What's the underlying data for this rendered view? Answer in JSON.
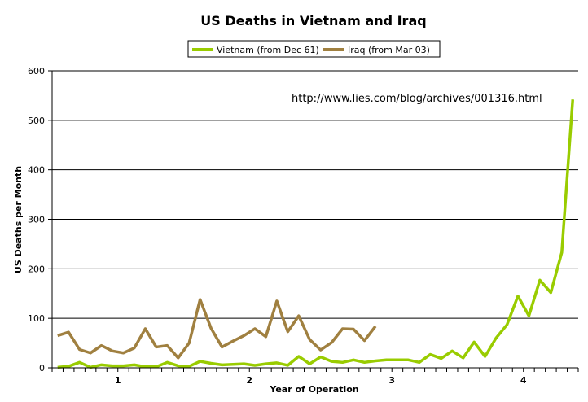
{
  "chart_data": {
    "type": "line",
    "title": "US Deaths in Vietnam and Iraq",
    "xlabel": "Year of Operation",
    "ylabel": "US Deaths per Month",
    "ylim": [
      0,
      600
    ],
    "yticks": [
      "0",
      "100",
      "200",
      "300",
      "400",
      "500",
      "600"
    ],
    "xtick_labels": [
      {
        "label": "1",
        "month": 6
      },
      {
        "label": "2",
        "month": 18
      },
      {
        "label": "3",
        "month": 31
      },
      {
        "label": "4",
        "month": 43
      }
    ],
    "months_in_view": 48,
    "grid": true,
    "legend": "top",
    "annotation": "http://www.lies.com/blog/archives/001316.html",
    "series": [
      {
        "name": "Vietnam (from Dec 61)",
        "color": "#99cc00",
        "values": [
          1,
          3,
          11,
          1,
          6,
          4,
          4,
          6,
          2,
          2,
          11,
          4,
          3,
          13,
          9,
          6,
          7,
          8,
          5,
          8,
          10,
          5,
          23,
          8,
          22,
          13,
          11,
          16,
          11,
          14,
          16,
          16,
          16,
          11,
          27,
          19,
          34,
          20,
          52,
          23,
          60,
          87,
          145,
          105,
          177,
          152,
          233,
          542
        ]
      },
      {
        "name": "Iraq (from Mar 03)",
        "color": "#a08040",
        "values": [
          65,
          72,
          37,
          30,
          45,
          34,
          30,
          40,
          79,
          42,
          45,
          20,
          50,
          138,
          80,
          42,
          54,
          65,
          79,
          63,
          135,
          73,
          105,
          57,
          36,
          51,
          79,
          78,
          55,
          84
        ]
      }
    ]
  }
}
